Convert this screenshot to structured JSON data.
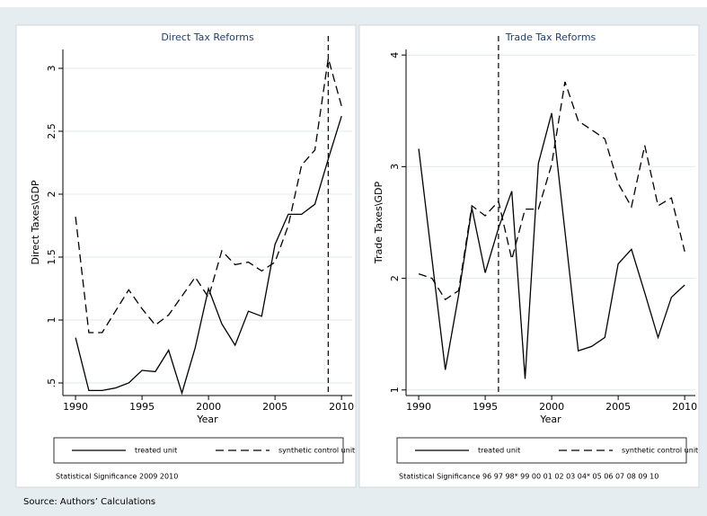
{
  "chart_data": [
    {
      "type": "line",
      "title": "Direct Tax Reforms",
      "xlabel": "Year",
      "ylabel": "Direct Taxes\\GDP",
      "x": [
        1990,
        1991,
        1992,
        1993,
        1994,
        1995,
        1996,
        1997,
        1998,
        1999,
        2000,
        2001,
        2002,
        2003,
        2004,
        2005,
        2006,
        2007,
        2008,
        2009,
        2010
      ],
      "series": [
        {
          "name": "treated unit",
          "color": "#000000",
          "dash": "solid",
          "values": [
            0.86,
            0.44,
            0.44,
            0.46,
            0.5,
            0.6,
            0.59,
            0.76,
            0.42,
            0.78,
            1.25,
            0.97,
            0.8,
            1.07,
            1.03,
            1.6,
            1.84,
            1.84,
            1.92,
            2.28,
            2.62
          ]
        },
        {
          "name": "synthetic control unit",
          "color": "#000000",
          "dash": "dashed",
          "values": [
            1.82,
            0.9,
            0.9,
            1.07,
            1.24,
            1.09,
            0.96,
            1.04,
            1.19,
            1.34,
            1.18,
            1.55,
            1.44,
            1.46,
            1.39,
            1.46,
            1.75,
            2.23,
            2.35,
            3.08,
            2.7
          ]
        }
      ],
      "xlim": [
        1989.05,
        2010.8
      ],
      "xticks": [
        1990,
        1995,
        2000,
        2005,
        2010
      ],
      "ylim": [
        0.4,
        3.15
      ],
      "yticks": [
        {
          "value": 0.5,
          "label": ".5"
        },
        1,
        1.5,
        2,
        2.5,
        3
      ],
      "vline": 2009,
      "grid": true,
      "note": "Statistical Significance 2009 2010"
    },
    {
      "type": "line",
      "title": "Trade Tax Reforms",
      "xlabel": "Year",
      "ylabel": "Trade Taxes\\GDP",
      "x": [
        1990,
        1991,
        1992,
        1993,
        1994,
        1995,
        1996,
        1997,
        1998,
        1999,
        2000,
        2001,
        2002,
        2003,
        2004,
        2005,
        2006,
        2007,
        2008,
        2009,
        2010
      ],
      "series": [
        {
          "name": "treated unit",
          "color": "#000000",
          "dash": "solid",
          "values": [
            3.16,
            2.17,
            1.18,
            1.85,
            2.63,
            2.05,
            2.45,
            2.78,
            1.1,
            3.03,
            3.48,
            2.42,
            1.35,
            1.39,
            1.47,
            2.13,
            2.26,
            1.87,
            1.47,
            1.83,
            1.94
          ]
        },
        {
          "name": "synthetic control unit",
          "color": "#000000",
          "dash": "dashed",
          "values": [
            2.04,
            2.0,
            1.81,
            1.89,
            2.65,
            2.56,
            2.69,
            2.17,
            2.62,
            2.62,
            3.02,
            3.76,
            3.41,
            3.33,
            3.25,
            2.85,
            2.64,
            3.19,
            2.65,
            2.72,
            2.24
          ]
        }
      ],
      "xlim": [
        1989.05,
        2010.8
      ],
      "xticks": [
        1990,
        1995,
        2000,
        2005,
        2010
      ],
      "ylim": [
        0.95,
        4.05
      ],
      "yticks": [
        1,
        2,
        3,
        4
      ],
      "vline": 1996,
      "grid": true,
      "note": "Statistical Significance 96 97 98* 99 00 01 02 03 04* 05 06 07 08 09 10"
    }
  ],
  "source": "Source: Authors’ Calculations"
}
